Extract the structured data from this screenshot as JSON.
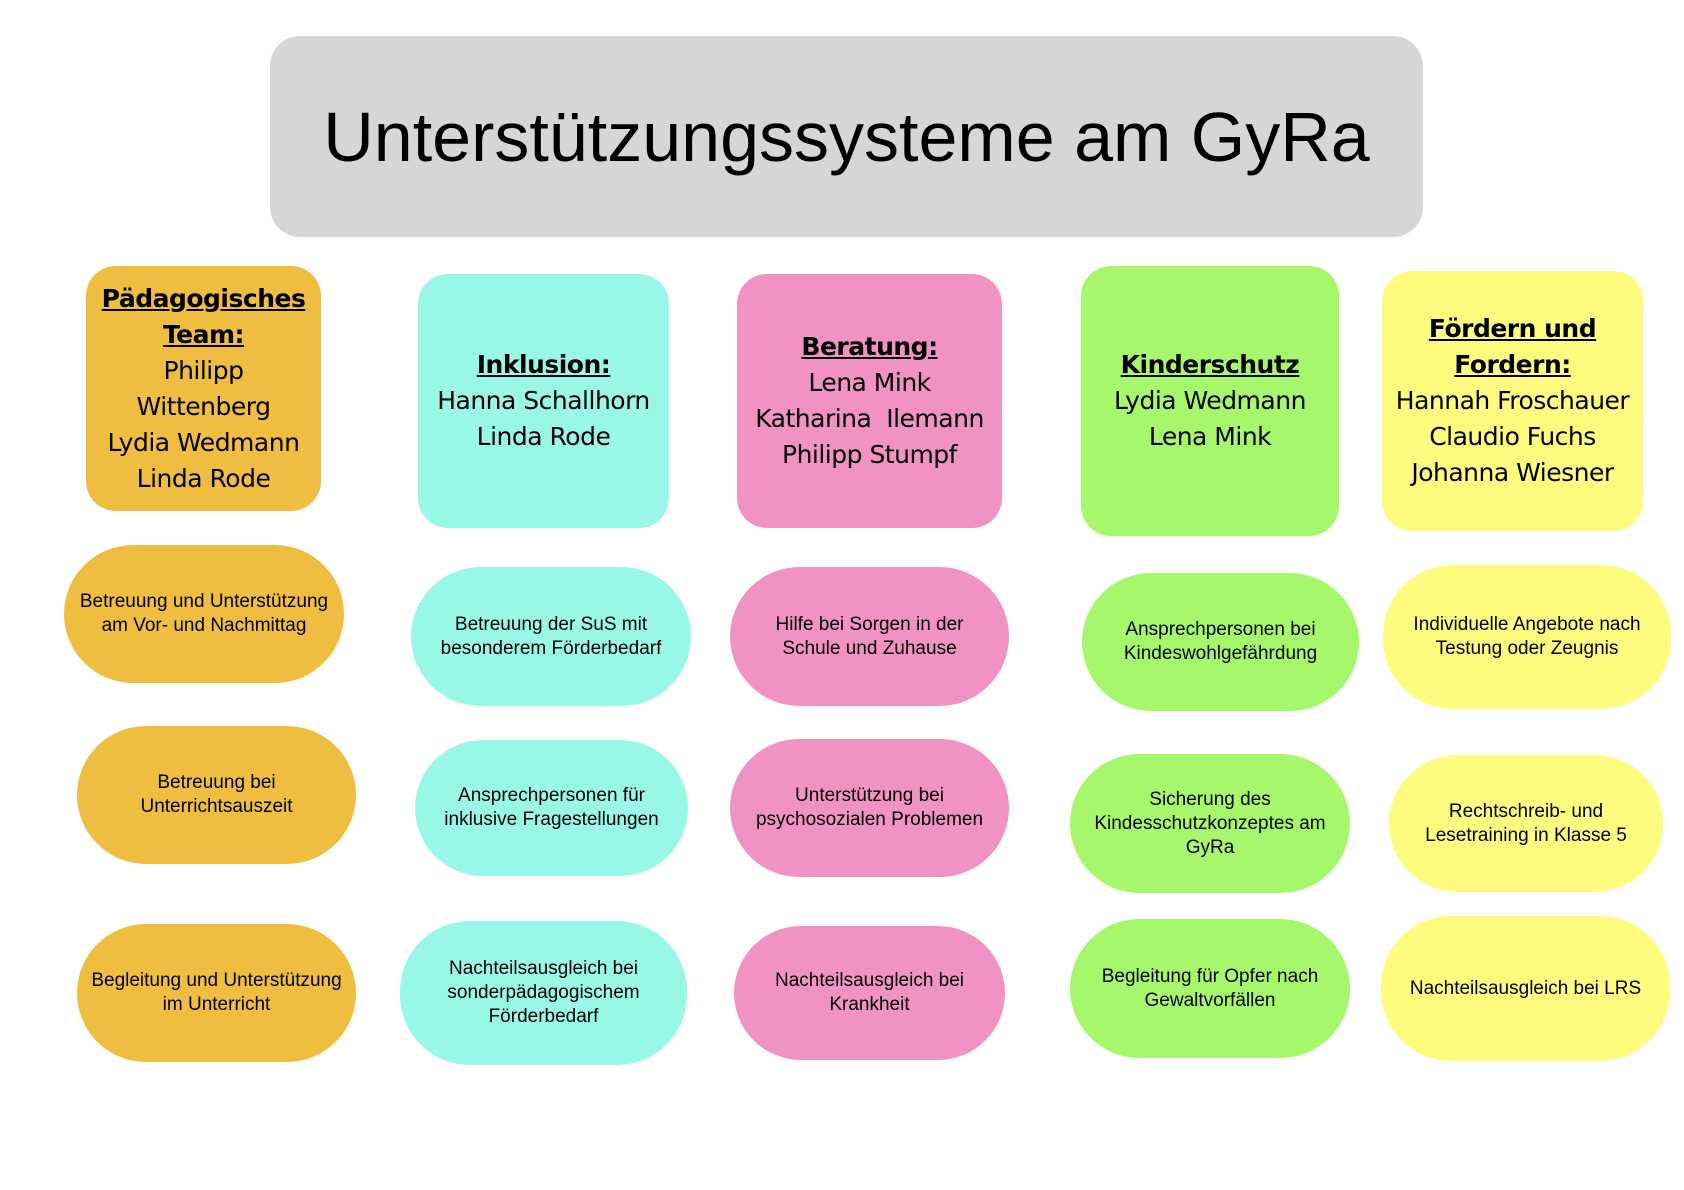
{
  "title": "Unterstützungssysteme am GyRa",
  "colors": {
    "title_bg": "#d6d6d6",
    "orange": "#efbe40",
    "cyan": "#99f7e8",
    "pink": "#f093c4",
    "green": "#a6f76c",
    "yellow": "#fdfc7e"
  },
  "columns": [
    {
      "heading": [
        "Pädagogisches",
        "Team:"
      ],
      "names": [
        "Philipp",
        "Wittenberg",
        "Lydia Wedmann",
        "Linda Rode"
      ],
      "items": [
        "Betreuung und Unterstützung am Vor- und Nachmittag",
        "Betreuung bei Unterrichtsauszeit",
        "Begleitung und Unterstützung im Unterricht"
      ]
    },
    {
      "heading": [
        "Inklusion:"
      ],
      "names": [
        "Hanna Schallhorn",
        "Linda Rode"
      ],
      "items": [
        "Betreuung der SuS mit besonderem Förderbedarf",
        "Ansprechpersonen für inklusive Fragestellungen",
        "Nachteilsausgleich bei sonderpädagogischem Förderbedarf"
      ]
    },
    {
      "heading": [
        "Beratung:"
      ],
      "names": [
        "Lena Mink",
        "Katharina  Ilemann",
        "Philipp Stumpf"
      ],
      "items": [
        "Hilfe bei Sorgen in der Schule und Zuhause",
        "Unterstützung bei psychosozialen Problemen",
        "Nachteilsausgleich bei Krankheit"
      ]
    },
    {
      "heading": [
        "Kinderschutz"
      ],
      "names": [
        "Lydia Wedmann",
        "Lena Mink"
      ],
      "items": [
        "Ansprechpersonen bei Kindeswohlgefährdung",
        "Sicherung des Kindesschutzkonzeptes am GyRa",
        "Begleitung für Opfer nach Gewaltvorfällen"
      ]
    },
    {
      "heading": [
        "Fördern und",
        "Fordern:"
      ],
      "names": [
        "Hannah Froschauer",
        "Claudio Fuchs",
        "Johanna Wiesner"
      ],
      "items": [
        "Individuelle Angebote nach Testung oder Zeugnis",
        "Rechtschreib- und Lesetraining in Klasse 5",
        "Nachteilsausgleich bei LRS"
      ]
    }
  ]
}
